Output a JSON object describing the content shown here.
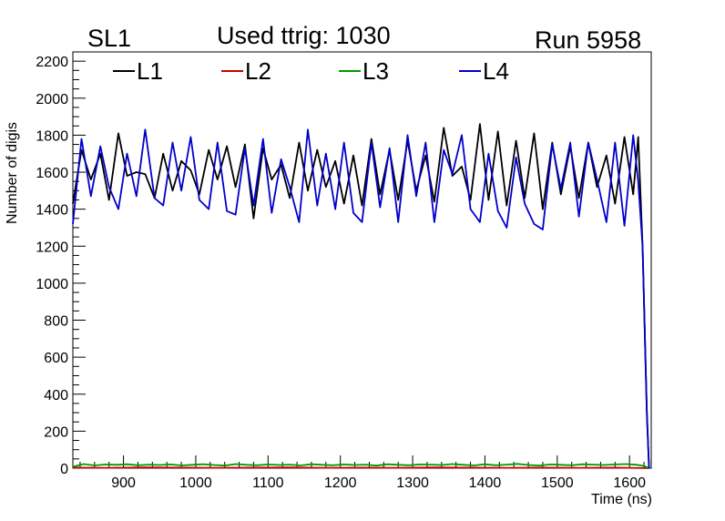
{
  "chart_data": {
    "type": "line",
    "header_left": "SL1",
    "title": "Used ttrig: 1030",
    "header_right": "Run 5958",
    "xlabel": "Time (ns)",
    "ylabel": "Number of digis",
    "xlim": [
      830,
      1630
    ],
    "ylim": [
      0,
      2250
    ],
    "xticks": [
      900,
      1000,
      1100,
      1200,
      1300,
      1400,
      1500,
      1600
    ],
    "yticks": [
      0,
      200,
      400,
      600,
      800,
      1000,
      1200,
      1400,
      1600,
      1800,
      2000,
      2200
    ],
    "series": [
      {
        "name": "L1",
        "color": "#000000",
        "x": [
          830,
          842,
          855,
          868,
          880,
          893,
          905,
          918,
          930,
          943,
          955,
          968,
          980,
          993,
          1005,
          1018,
          1030,
          1043,
          1055,
          1068,
          1080,
          1093,
          1105,
          1118,
          1130,
          1143,
          1155,
          1168,
          1180,
          1193,
          1205,
          1218,
          1230,
          1243,
          1255,
          1268,
          1280,
          1293,
          1305,
          1318,
          1330,
          1343,
          1355,
          1368,
          1380,
          1393,
          1405,
          1418,
          1430,
          1443,
          1455,
          1468,
          1480,
          1493,
          1505,
          1518,
          1530,
          1543,
          1555,
          1568,
          1580,
          1593,
          1605,
          1612,
          1618,
          1624,
          1627
        ],
        "values": [
          1430,
          1720,
          1560,
          1700,
          1450,
          1810,
          1580,
          1600,
          1590,
          1460,
          1700,
          1500,
          1660,
          1610,
          1480,
          1720,
          1560,
          1740,
          1520,
          1750,
          1350,
          1730,
          1560,
          1640,
          1460,
          1760,
          1500,
          1720,
          1520,
          1660,
          1430,
          1690,
          1420,
          1780,
          1480,
          1720,
          1450,
          1770,
          1500,
          1690,
          1440,
          1840,
          1580,
          1630,
          1450,
          1860,
          1450,
          1820,
          1420,
          1770,
          1460,
          1810,
          1400,
          1760,
          1480,
          1740,
          1460,
          1760,
          1520,
          1690,
          1430,
          1790,
          1480,
          1790,
          1200,
          300,
          0
        ]
      },
      {
        "name": "L2",
        "color": "#cc0000",
        "x": [
          830,
          880,
          930,
          980,
          1030,
          1080,
          1130,
          1180,
          1230,
          1280,
          1330,
          1380,
          1430,
          1480,
          1530,
          1580,
          1627
        ],
        "values": [
          3,
          2,
          4,
          3,
          2,
          3,
          4,
          2,
          3,
          2,
          4,
          3,
          2,
          3,
          2,
          3,
          0
        ]
      },
      {
        "name": "L3",
        "color": "#009900",
        "x": [
          830,
          845,
          860,
          875,
          890,
          905,
          920,
          935,
          950,
          965,
          980,
          995,
          1010,
          1025,
          1040,
          1055,
          1070,
          1085,
          1100,
          1115,
          1130,
          1145,
          1160,
          1175,
          1190,
          1205,
          1220,
          1235,
          1250,
          1265,
          1280,
          1295,
          1310,
          1325,
          1340,
          1355,
          1370,
          1385,
          1400,
          1415,
          1430,
          1445,
          1460,
          1475,
          1490,
          1505,
          1520,
          1535,
          1550,
          1565,
          1580,
          1595,
          1610,
          1620,
          1627
        ],
        "values": [
          8,
          22,
          15,
          20,
          18,
          21,
          16,
          19,
          17,
          20,
          15,
          18,
          21,
          17,
          14,
          22,
          18,
          16,
          20,
          17,
          19,
          15,
          21,
          18,
          16,
          20,
          17,
          19,
          14,
          21,
          18,
          16,
          20,
          19,
          17,
          22,
          18,
          15,
          21,
          16,
          19,
          23,
          17,
          14,
          20,
          18,
          16,
          21,
          19,
          17,
          20,
          22,
          18,
          12,
          0
        ]
      },
      {
        "name": "L4",
        "color": "#0000cc",
        "x": [
          830,
          842,
          855,
          868,
          880,
          893,
          905,
          918,
          930,
          943,
          955,
          968,
          980,
          993,
          1005,
          1018,
          1030,
          1043,
          1055,
          1068,
          1080,
          1093,
          1105,
          1118,
          1130,
          1143,
          1155,
          1168,
          1180,
          1193,
          1205,
          1218,
          1230,
          1243,
          1255,
          1268,
          1280,
          1293,
          1305,
          1318,
          1330,
          1343,
          1355,
          1368,
          1380,
          1393,
          1405,
          1418,
          1430,
          1443,
          1455,
          1468,
          1480,
          1493,
          1505,
          1518,
          1530,
          1543,
          1555,
          1568,
          1580,
          1593,
          1605,
          1612,
          1618,
          1624,
          1627
        ],
        "values": [
          1320,
          1780,
          1470,
          1740,
          1520,
          1400,
          1700,
          1470,
          1830,
          1460,
          1420,
          1760,
          1500,
          1790,
          1450,
          1400,
          1760,
          1390,
          1370,
          1730,
          1420,
          1780,
          1380,
          1670,
          1520,
          1330,
          1830,
          1420,
          1700,
          1400,
          1760,
          1380,
          1330,
          1760,
          1410,
          1730,
          1330,
          1800,
          1470,
          1760,
          1330,
          1720,
          1590,
          1800,
          1400,
          1330,
          1700,
          1390,
          1300,
          1680,
          1430,
          1320,
          1290,
          1750,
          1510,
          1760,
          1360,
          1760,
          1560,
          1330,
          1760,
          1310,
          1800,
          1550,
          1200,
          300,
          0
        ]
      }
    ]
  }
}
